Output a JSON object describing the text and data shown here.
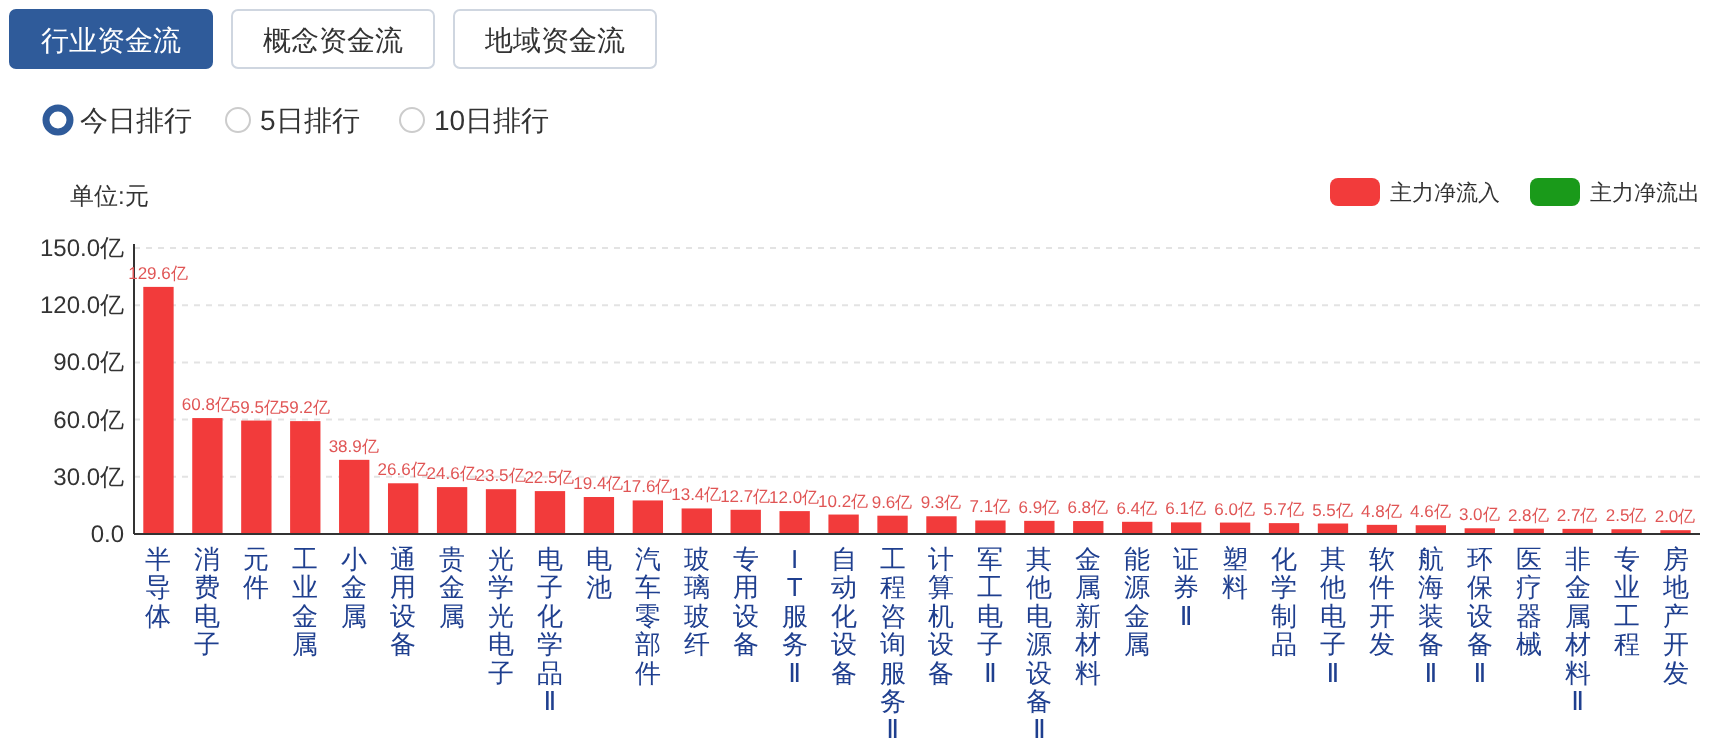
{
  "chart_data": {
    "type": "bar",
    "annotations": [
      "行业资金流",
      "概念资金流",
      "地域资金流",
      "今日排行",
      "5日排行",
      "10日排行"
    ],
    "ylabel": "单位:元",
    "categories": [
      "半导体",
      "消费电子",
      "元件",
      "工业金属",
      "小金属",
      "通用设备",
      "贵金属",
      "光学光电子",
      "电子化学品Ⅱ",
      "电池",
      "汽车零部件",
      "玻璃玻纤",
      "专用设备",
      "IT服务Ⅱ",
      "自动化设备",
      "工程咨询服务Ⅱ",
      "计算机设备",
      "军工电子Ⅱ",
      "其他电源设备Ⅱ",
      "金属新材料",
      "能源金属",
      "证券Ⅱ",
      "塑料",
      "化学制品",
      "其他电子Ⅱ",
      "软件开发",
      "航海装备Ⅱ",
      "环保设备Ⅱ",
      "医疗器械",
      "非金属材料Ⅱ",
      "专业工程",
      "房地产开发"
    ],
    "series": [
      {
        "name": "主力净流入",
        "color": "#f23b3b",
        "values": [
          129.6,
          60.8,
          59.5,
          59.2,
          38.9,
          26.6,
          24.6,
          23.5,
          22.5,
          19.4,
          17.6,
          13.4,
          12.7,
          12.0,
          10.2,
          9.6,
          9.3,
          7.1,
          6.9,
          6.8,
          6.4,
          6.1,
          6.0,
          5.7,
          5.5,
          4.8,
          4.6,
          3.0,
          2.8,
          2.7,
          2.5,
          2.0
        ],
        "value_labels": [
          "129.6亿",
          "60.8亿",
          "59.5亿",
          "59.2亿",
          "38.9亿",
          "26.6亿",
          "24.6亿",
          "23.5亿",
          "22.5亿",
          "19.4亿",
          "17.6亿",
          "13.4亿",
          "12.7亿",
          "12.0亿",
          "10.2亿",
          "9.6亿",
          "9.3亿",
          "7.1亿",
          "6.9亿",
          "6.8亿",
          "6.4亿",
          "6.1亿",
          "6.0亿",
          "5.7亿",
          "5.5亿",
          "4.8亿",
          "4.6亿",
          "3.0亿",
          "2.8亿",
          "2.7亿",
          "2.5亿",
          "2.0亿"
        ]
      },
      {
        "name": "主力净流出",
        "color": "#1a9a1a",
        "values": [
          null,
          null,
          null,
          null,
          null,
          null,
          null,
          null,
          null,
          null,
          null,
          null,
          null,
          null,
          null,
          null,
          null,
          null,
          null,
          null,
          null,
          null,
          null,
          null,
          null,
          null,
          null,
          null,
          null,
          null,
          null,
          null
        ]
      }
    ],
    "ylim": [
      0,
      150
    ],
    "yticks": [
      {
        "value": 0,
        "label": "0.0"
      },
      {
        "value": 30,
        "label": "30.0亿"
      },
      {
        "value": 60,
        "label": "60.0亿"
      },
      {
        "value": 90,
        "label": "90.0亿"
      },
      {
        "value": 120,
        "label": "120.0亿"
      },
      {
        "value": 150,
        "label": "150.0亿"
      }
    ],
    "grid": "y",
    "legend": "top right"
  }
}
